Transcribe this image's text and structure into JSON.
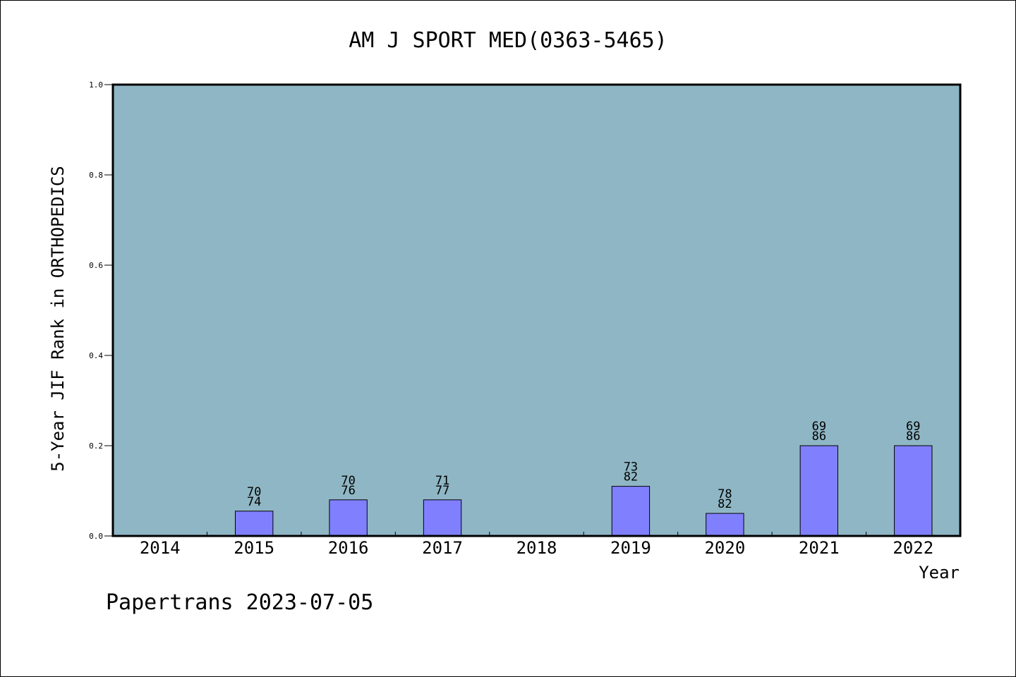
{
  "chart_data": {
    "type": "bar",
    "title": "AM J SPORT MED(0363-5465)",
    "xlabel": "Year",
    "ylabel": "5-Year JIF Rank in ORTHOPEDICS",
    "ylim": [
      0,
      1.0
    ],
    "yticks": [
      "0.0",
      "0.2",
      "0.4",
      "0.6",
      "0.8",
      "1.0"
    ],
    "categories": [
      "2014",
      "2015",
      "2016",
      "2017",
      "2018",
      "2019",
      "2020",
      "2021",
      "2022"
    ],
    "values": [
      null,
      0.055,
      0.08,
      0.08,
      null,
      0.11,
      0.05,
      0.2,
      0.2
    ],
    "bar_labels": [
      null,
      [
        "70",
        "74"
      ],
      [
        "70",
        "76"
      ],
      [
        "71",
        "77"
      ],
      null,
      [
        "73",
        "82"
      ],
      [
        "78",
        "82"
      ],
      [
        "69",
        "86"
      ],
      [
        "69",
        "86"
      ]
    ],
    "grid": false,
    "colors": {
      "plot_background": "#8fb6c4",
      "bar_fill": "#8080ff",
      "bar_stroke": "#000000"
    }
  },
  "footer": "Papertrans 2023-07-05"
}
